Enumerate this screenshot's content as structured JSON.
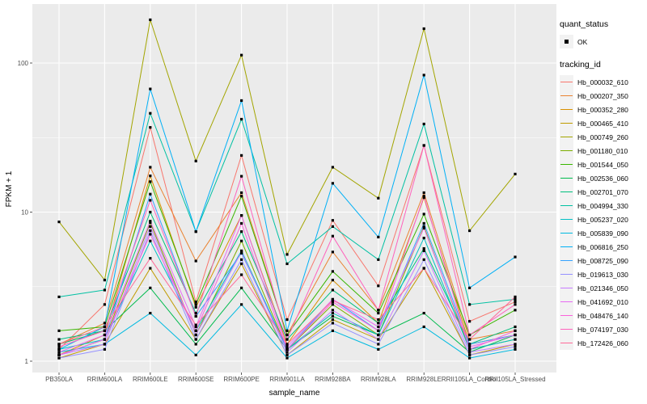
{
  "legend": {
    "quant_title": "quant_status",
    "quant_label": "OK",
    "tracking_title": "tracking_id"
  },
  "chart_data": {
    "type": "line",
    "title": "",
    "xlabel": "sample_name",
    "ylabel": "FPKM + 1",
    "y_scale": "log10",
    "y_ticks": [
      1,
      10,
      100
    ],
    "y_minor_ticks": [
      3.1623,
      31.623
    ],
    "ylim": [
      1,
      230
    ],
    "grid": true,
    "legend_position": "right",
    "panel_bg": "#EBEBEB",
    "grid_color": "#FFFFFF",
    "point_color": "#000000",
    "axis_text_color": "#4D4D4D",
    "categories": [
      "PB350LA",
      "RRIM600LA",
      "RRIM600LE",
      "RRIM600SE",
      "RRIM600PE",
      "RRIM901LA",
      "RRIM928BA",
      "RRIM928LA",
      "RRIM928LE",
      "RRII105LA_Control",
      "RRII105LA_Stressed"
    ],
    "series": [
      {
        "name": "Hb_000032_610",
        "color": "#F8766D",
        "values": [
          1.2,
          2.4,
          37,
          2.5,
          24,
          1.9,
          8.8,
          3.2,
          28,
          1.85,
          2.5
        ]
      },
      {
        "name": "Hb_000207_350",
        "color": "#EA8331",
        "values": [
          1.3,
          1.8,
          20,
          4.7,
          13.5,
          1.5,
          5.4,
          2.2,
          13.5,
          1.4,
          1.6
        ]
      },
      {
        "name": "Hb_000352_280",
        "color": "#D89000",
        "values": [
          1.1,
          1.5,
          17.5,
          2.3,
          9.5,
          1.3,
          3.5,
          1.8,
          12.5,
          1.3,
          1.5
        ]
      },
      {
        "name": "Hb_000465_410",
        "color": "#C09B00",
        "values": [
          1.05,
          1.3,
          4.2,
          1.4,
          4.5,
          1.1,
          1.9,
          1.4,
          4.2,
          1.1,
          1.3
        ]
      },
      {
        "name": "Hb_000749_260",
        "color": "#A3A500",
        "values": [
          8.6,
          3.5,
          195,
          22,
          113,
          5.2,
          20,
          12.4,
          170,
          7.5,
          18
        ]
      },
      {
        "name": "Hb_001180_010",
        "color": "#7CAE00",
        "values": [
          1.1,
          1.4,
          8.5,
          1.5,
          6.4,
          1.2,
          2.4,
          1.5,
          8.0,
          1.2,
          1.4
        ]
      },
      {
        "name": "Hb_001544_050",
        "color": "#39B600",
        "values": [
          1.6,
          1.7,
          16,
          2.4,
          12.8,
          1.5,
          4.0,
          2.1,
          9.7,
          1.5,
          2.2
        ]
      },
      {
        "name": "Hb_002536_060",
        "color": "#00BB4E",
        "values": [
          1.3,
          1.6,
          3.1,
          1.3,
          3.1,
          1.2,
          2.0,
          1.5,
          2.1,
          1.15,
          1.5
        ]
      },
      {
        "name": "Hb_002701_070",
        "color": "#00BF7D",
        "values": [
          1.4,
          1.6,
          10,
          2.1,
          7.4,
          1.4,
          3.0,
          1.8,
          5.7,
          1.3,
          1.7
        ]
      },
      {
        "name": "Hb_004994_330",
        "color": "#00C1A3",
        "values": [
          2.7,
          3.0,
          46,
          7.4,
          42,
          4.5,
          8.0,
          4.8,
          39,
          2.4,
          2.6
        ]
      },
      {
        "name": "Hb_005237_020",
        "color": "#00BFC4",
        "values": [
          1.2,
          1.4,
          6.4,
          1.6,
          5.5,
          1.2,
          2.1,
          1.5,
          6.7,
          1.2,
          1.4
        ]
      },
      {
        "name": "Hb_005839_090",
        "color": "#00BAE0",
        "values": [
          1.15,
          1.3,
          2.1,
          1.1,
          2.4,
          1.05,
          1.6,
          1.2,
          1.7,
          1.05,
          1.2
        ]
      },
      {
        "name": "Hb_006816_250",
        "color": "#00B0F6",
        "values": [
          1.2,
          1.7,
          67,
          7.4,
          56,
          1.6,
          15.6,
          6.8,
          83,
          3.1,
          5.0
        ]
      },
      {
        "name": "Hb_008725_090",
        "color": "#35A2FF",
        "values": [
          1.1,
          1.4,
          13.2,
          2.0,
          5.3,
          1.2,
          2.6,
          1.6,
          8.4,
          1.3,
          1.5
        ]
      },
      {
        "name": "Hb_019613_030",
        "color": "#9590FF",
        "values": [
          1.05,
          1.2,
          7.5,
          1.4,
          4.8,
          1.1,
          1.8,
          1.3,
          4.8,
          1.1,
          1.25
        ]
      },
      {
        "name": "Hb_021346_050",
        "color": "#C77CFF",
        "values": [
          1.1,
          1.3,
          8.0,
          1.5,
          5.4,
          1.15,
          2.2,
          1.4,
          5.5,
          1.15,
          1.3
        ]
      },
      {
        "name": "Hb_041692_010",
        "color": "#E76BF3",
        "values": [
          1.15,
          1.5,
          8.7,
          1.7,
          9.5,
          1.25,
          2.6,
          1.7,
          7.8,
          1.25,
          1.5
        ]
      },
      {
        "name": "Hb_048476_140",
        "color": "#FA62DB",
        "values": [
          1.1,
          1.4,
          7.1,
          1.6,
          8.4,
          1.2,
          2.5,
          1.6,
          12.8,
          1.2,
          1.6
        ]
      },
      {
        "name": "Hb_074197_030",
        "color": "#FF62BC",
        "values": [
          1.25,
          1.6,
          12,
          2.0,
          17.4,
          1.4,
          6.9,
          2.2,
          28,
          1.5,
          2.4
        ]
      },
      {
        "name": "Hb_172426_060",
        "color": "#FF6A98",
        "values": [
          1.3,
          1.7,
          4.9,
          1.75,
          3.8,
          1.3,
          2.55,
          1.9,
          4.2,
          1.4,
          2.7
        ]
      }
    ]
  }
}
